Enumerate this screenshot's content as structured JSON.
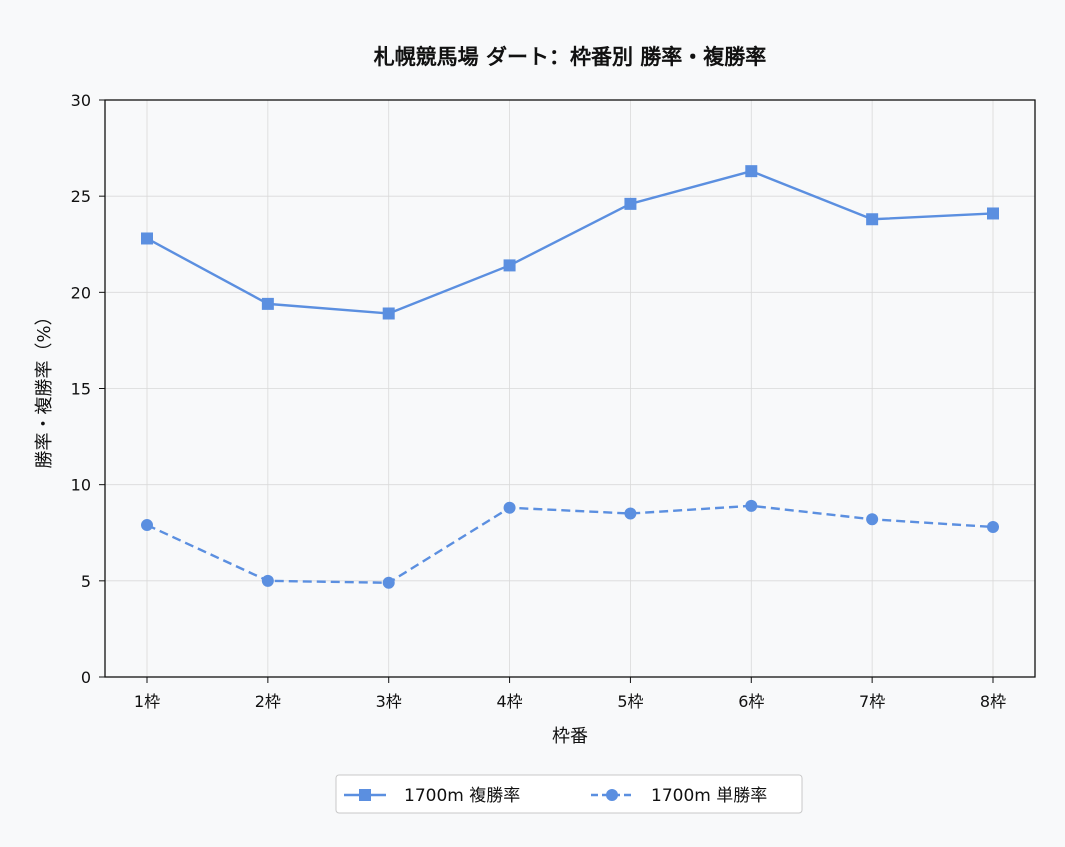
{
  "chart_data": {
    "type": "line",
    "title": "札幌競馬場 ダート：枠番別 勝率・複勝率",
    "xlabel": "枠番",
    "ylabel": "勝率・複勝率（%）",
    "categories": [
      "1枠",
      "2枠",
      "3枠",
      "4枠",
      "5枠",
      "6枠",
      "7枠",
      "8枠"
    ],
    "ylim": [
      0,
      30
    ],
    "yticks": [
      "0",
      "5",
      "10",
      "15",
      "20",
      "25",
      "30"
    ],
    "grid": true,
    "legend_position": "bottom-center",
    "series": [
      {
        "name": "1700m 複勝率",
        "values": [
          22.8,
          19.4,
          18.9,
          21.4,
          24.6,
          26.3,
          23.8,
          24.1
        ],
        "color": "#5b8fe0",
        "marker": "square",
        "line_style": "solid"
      },
      {
        "name": "1700m 単勝率",
        "values": [
          7.9,
          5.0,
          4.9,
          8.8,
          8.5,
          8.9,
          8.2,
          7.8
        ],
        "color": "#5b8fe0",
        "marker": "circle",
        "line_style": "dashed"
      }
    ]
  }
}
